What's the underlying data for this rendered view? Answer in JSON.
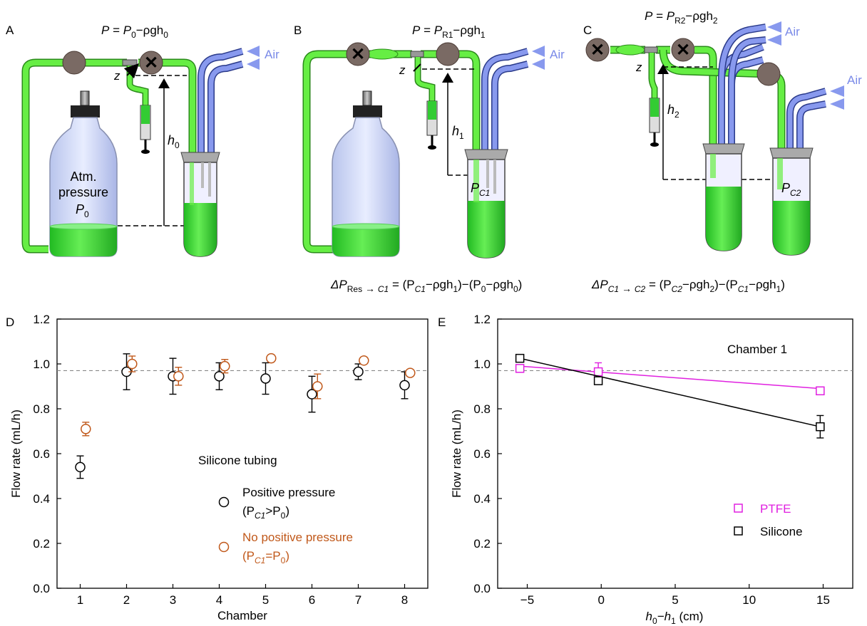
{
  "panels": {
    "A": {
      "letter": "A",
      "eq_lhs": "P",
      "eq_mid": " = ",
      "eq_p": "P",
      "eq_p_sub": "0",
      "eq_minus": "−ρgh",
      "eq_h_sub": "0",
      "z": "z",
      "h": "h",
      "h_sub": "0",
      "air": "Air",
      "bottle_lines": [
        "Atm.",
        "pressure"
      ],
      "bottle_p": "P",
      "bottle_p_sub": "0"
    },
    "B": {
      "letter": "B",
      "eq_lhs": "P",
      "eq_mid": " = ",
      "eq_p": "P",
      "eq_p_sub": "R1",
      "eq_minus": "−ρgh",
      "eq_h_sub": "1",
      "z": "z",
      "h": "h",
      "h_sub": "1",
      "air": "Air",
      "chamber_p": "P",
      "chamber_p_sub": "C1",
      "formula": {
        "delta": "ΔP",
        "sub": "Res",
        "sub2": "C1",
        "rest": " = (P",
        "s1": "C1",
        "r1": "−ρgh",
        "s2": "1",
        "r2": ")−(P",
        "s3": "0",
        "r3": "−ρgh",
        "s4": "0",
        "r4": ")"
      }
    },
    "C": {
      "letter": "C",
      "eq_lhs": "P",
      "eq_mid": " = ",
      "eq_p": "P",
      "eq_p_sub": "R2",
      "eq_minus": "−ρgh",
      "eq_h_sub": "2",
      "z": "z",
      "h": "h",
      "h_sub": "2",
      "air1": "Air",
      "air2": "Air",
      "chamber_p": "P",
      "chamber_p_sub": "C2",
      "formula": {
        "delta": "ΔP",
        "sub": "C1",
        "sub2": "C2",
        "rest": " = (P",
        "s1": "C2",
        "r1": "−ρgh",
        "s2": "2",
        "r2": ")−(P",
        "s3": "C1",
        "r3": "−ρgh",
        "s4": "1",
        "r4": ")"
      }
    }
  },
  "colors": {
    "tube_green": "#66ee44",
    "tube_blue": "#8899ee",
    "valve": "#7a6a64",
    "liquid": "#33cc33",
    "pink": "#e020e0",
    "orange": "#c0581a"
  },
  "chart_data": [
    {
      "panel": "D",
      "type": "scatter",
      "xlabel": "Chamber",
      "ylabel": "Flow rate (mL/h)",
      "xlim": [
        0.5,
        8.5
      ],
      "ylim": [
        0.0,
        1.2
      ],
      "xticks": [
        "1",
        "2",
        "3",
        "4",
        "5",
        "6",
        "7",
        "8"
      ],
      "yticks": [
        "0.0",
        "0.2",
        "0.4",
        "0.6",
        "0.8",
        "1.0",
        "1.2"
      ],
      "reference_line": 0.97,
      "legend_title": "Silicone tubing",
      "series": [
        {
          "name": "Positive pressure",
          "name_line2": "(P_C1>P_0)",
          "color": "#000000",
          "marker": "circle",
          "x": [
            1,
            2,
            3,
            4,
            5,
            6,
            7,
            8
          ],
          "values": [
            0.54,
            0.965,
            0.945,
            0.945,
            0.935,
            0.865,
            0.965,
            0.905
          ],
          "errors": [
            0.05,
            0.08,
            0.08,
            0.06,
            0.07,
            0.08,
            0.035,
            0.06
          ]
        },
        {
          "name": "No positive pressure",
          "name_line2": "(P_C1=P_0)",
          "color": "#c0581a",
          "marker": "circle",
          "x": [
            1.12,
            2.12,
            3.12,
            4.12,
            5.12,
            6.12,
            7.12,
            8.12
          ],
          "values": [
            0.71,
            1.0,
            0.945,
            0.99,
            1.025,
            0.9,
            1.015,
            0.96
          ],
          "errors": [
            0.03,
            0.035,
            0.04,
            0.03,
            0.015,
            0.055,
            0.015,
            0.015
          ]
        }
      ]
    },
    {
      "panel": "E",
      "type": "scatter",
      "title": "Chamber 1",
      "xlabel": "h0−h1 (cm)",
      "ylabel": "Flow rate (mL/h)",
      "xlim": [
        -7,
        17
      ],
      "ylim": [
        0.0,
        1.2
      ],
      "xticks": [
        "−5",
        "0",
        "5",
        "10",
        "15"
      ],
      "yticks": [
        "0.0",
        "0.2",
        "0.4",
        "0.6",
        "0.8",
        "1.0",
        "1.2"
      ],
      "reference_line": 0.97,
      "series": [
        {
          "name": "PTFE",
          "color": "#e020e0",
          "marker": "square",
          "x": [
            -5.5,
            -0.2,
            14.8
          ],
          "values": [
            0.98,
            0.965,
            0.88
          ],
          "errors": [
            0.015,
            0.04,
            0.015
          ],
          "fit": [
            [
              -5.5,
              0.99
            ],
            [
              14.8,
              0.89
            ]
          ]
        },
        {
          "name": "Silicone",
          "color": "#000000",
          "marker": "square",
          "x": [
            -5.5,
            -0.2,
            14.8
          ],
          "values": [
            1.025,
            0.925,
            0.72
          ],
          "errors": [
            0.015,
            0.015,
            0.05
          ],
          "fit": [
            [
              -5.5,
              1.025
            ],
            [
              14.8,
              0.72
            ]
          ]
        }
      ]
    }
  ],
  "labels": {
    "D": "D",
    "E": "E",
    "legendD_line2a_p": "(P",
    "legendD_line2a_sub": "C1",
    "legendD_line2a_rest": ">P",
    "legendD_line2a_sub2": "0",
    "legendD_line2a_close": ")",
    "legendD_line2b_p": "(P",
    "legendD_line2b_sub": "C1",
    "legendD_line2b_rest": "=P",
    "legendD_line2b_sub2": "0",
    "legendD_line2b_close": ")",
    "xlabelE_h": "h",
    "xlabelE_s1": "0",
    "xlabelE_minus": "−h",
    "xlabelE_s2": "1",
    "xlabelE_unit": " (cm)"
  }
}
